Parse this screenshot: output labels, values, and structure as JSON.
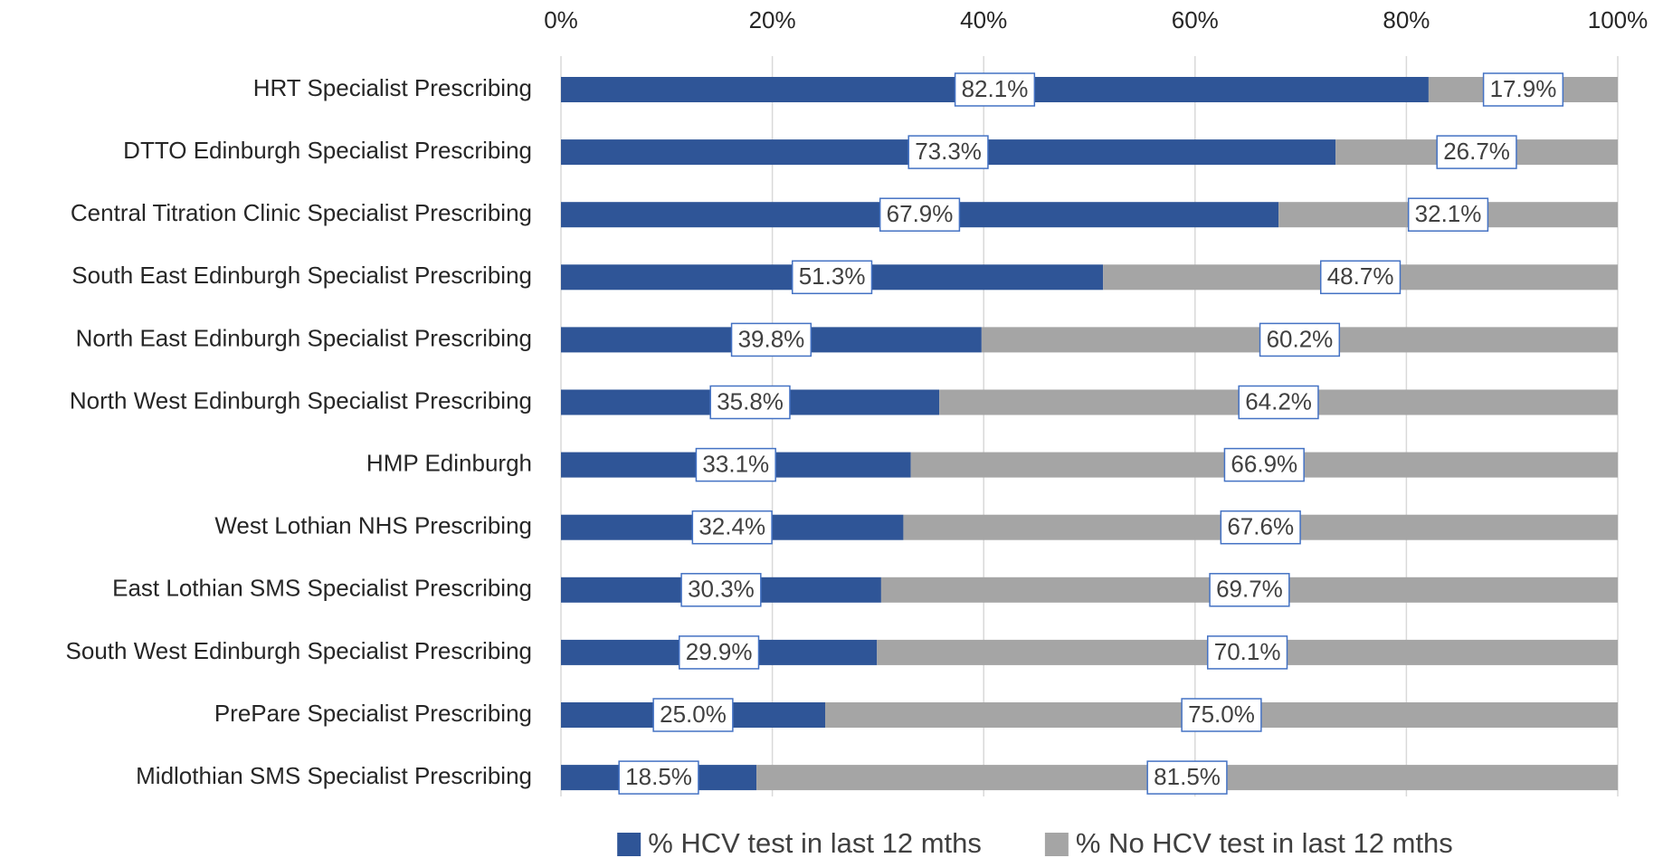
{
  "chart_data": {
    "type": "bar",
    "orientation": "horizontal",
    "stacked": true,
    "categories": [
      "HRT Specialist Prescribing",
      "DTTO Edinburgh Specialist Prescribing",
      "Central Titration Clinic Specialist Prescribing",
      "South East Edinburgh Specialist Prescribing",
      "North East Edinburgh Specialist Prescribing",
      "North West Edinburgh Specialist Prescribing",
      "HMP Edinburgh",
      "West Lothian NHS Prescribing",
      "East Lothian SMS Specialist Prescribing",
      "South West Edinburgh Specialist Prescribing",
      "PrePare Specialist Prescribing",
      "Midlothian SMS Specialist Prescribing"
    ],
    "series": [
      {
        "name": "% HCV test in last 12 mths",
        "color": "#2f5597",
        "values": [
          82.1,
          73.3,
          67.9,
          51.3,
          39.8,
          35.8,
          33.1,
          32.4,
          30.3,
          29.9,
          25.0,
          18.5
        ],
        "value_labels": [
          "82.1%",
          "73.3%",
          "67.9%",
          "51.3%",
          "39.8%",
          "35.8%",
          "33.1%",
          "32.4%",
          "30.3%",
          "29.9%",
          "25.0%",
          "18.5%"
        ]
      },
      {
        "name": "% No HCV test in last 12 mths",
        "color": "#a5a5a5",
        "values": [
          17.9,
          26.7,
          32.1,
          48.7,
          60.2,
          64.2,
          66.9,
          67.6,
          69.7,
          70.1,
          75.0,
          81.5
        ],
        "value_labels": [
          "17.9%",
          "26.7%",
          "32.1%",
          "48.7%",
          "60.2%",
          "64.2%",
          "66.9%",
          "67.6%",
          "69.7%",
          "70.1%",
          "75.0%",
          "81.5%"
        ]
      }
    ],
    "xlim": [
      0,
      100
    ],
    "xticks": [
      {
        "value": 0,
        "label": "0%"
      },
      {
        "value": 20,
        "label": "20%"
      },
      {
        "value": 40,
        "label": "40%"
      },
      {
        "value": 60,
        "label": "60%"
      },
      {
        "value": 80,
        "label": "80%"
      },
      {
        "value": 100,
        "label": "100%"
      }
    ],
    "grid": true,
    "legend": "bottom"
  }
}
